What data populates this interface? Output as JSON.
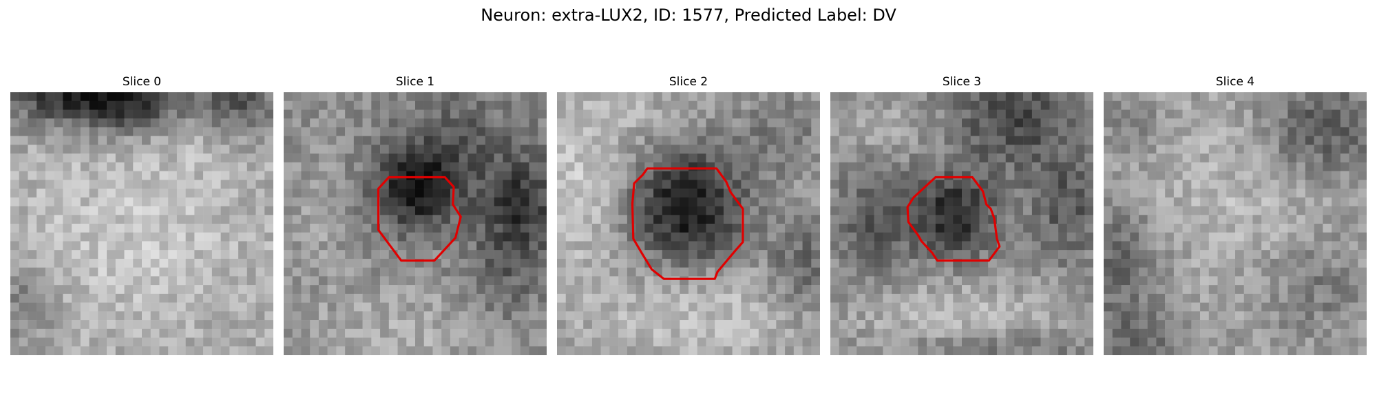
{
  "figure": {
    "title": "Neuron: extra-LUX2, ID: 1577, Predicted Label: DV"
  },
  "panels": [
    {
      "title": "Slice 0",
      "has_outline": false,
      "seed": 11
    },
    {
      "title": "Slice 1",
      "has_outline": true,
      "seed": 23
    },
    {
      "title": "Slice 2",
      "has_outline": true,
      "seed": 37
    },
    {
      "title": "Slice 3",
      "has_outline": true,
      "seed": 53
    },
    {
      "title": "Slice 4",
      "has_outline": false,
      "seed": 71
    }
  ],
  "colors": {
    "outline": "#e00000",
    "background": "#ffffff",
    "colormap": "gray"
  }
}
